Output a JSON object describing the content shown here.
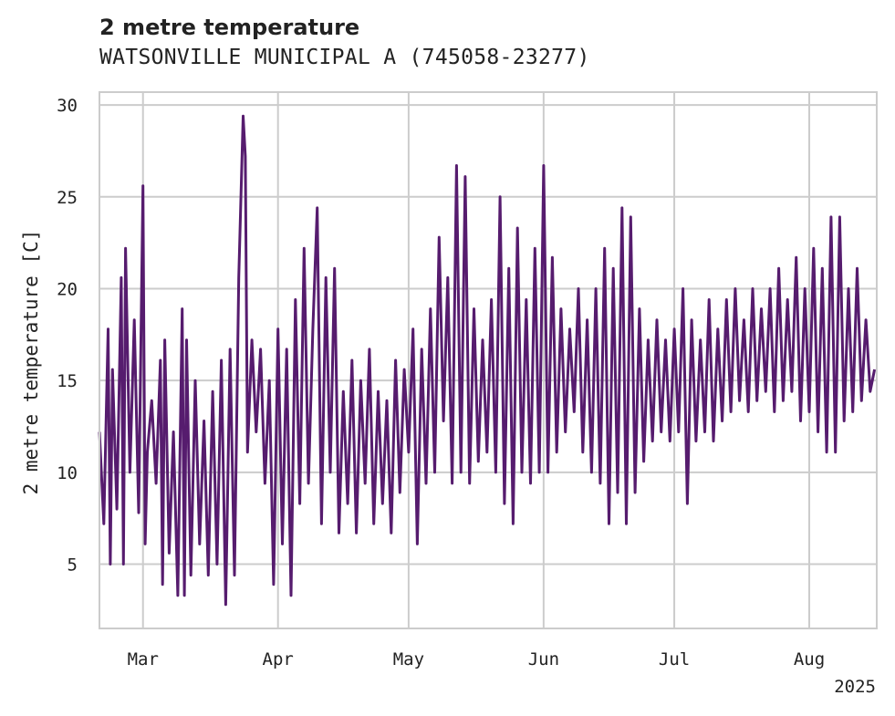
{
  "chart_data": {
    "type": "line",
    "title": "2 metre temperature",
    "subtitle": "WATSONVILLE MUNICIPAL A (745058-23277)",
    "xlabel": "",
    "ylabel": "2 metre temperature [C]",
    "x_range": [
      "2025-02-19",
      "2025-08-16"
    ],
    "ylim": [
      1.5,
      30.7
    ],
    "yticks": [
      5,
      10,
      15,
      20,
      25,
      30
    ],
    "xticks": [
      {
        "date": "2025-03-01",
        "label": "Mar"
      },
      {
        "date": "2025-04-01",
        "label": "Apr"
      },
      {
        "date": "2025-05-01",
        "label": "May"
      },
      {
        "date": "2025-06-01",
        "label": "Jun"
      },
      {
        "date": "2025-07-01",
        "label": "Jul"
      },
      {
        "date": "2025-08-01",
        "label": "Aug"
      }
    ],
    "x_offset_label": "2025",
    "grid": true,
    "color": "#561c6e",
    "series": [
      {
        "name": "",
        "resolution": "hourly (peaks shown)",
        "points": [
          [
            "2025-02-19",
            12.2
          ],
          [
            "2025-02-20",
            7.2
          ],
          [
            "2025-02-21",
            17.8
          ],
          [
            "2025-02-21T12",
            5.0
          ],
          [
            "2025-02-22",
            15.6
          ],
          [
            "2025-02-23",
            8.0
          ],
          [
            "2025-02-24",
            20.6
          ],
          [
            "2025-02-24T12",
            5.0
          ],
          [
            "2025-02-25",
            22.2
          ],
          [
            "2025-02-26",
            10.0
          ],
          [
            "2025-02-27",
            18.3
          ],
          [
            "2025-02-28",
            7.8
          ],
          [
            "2025-03-01",
            25.6
          ],
          [
            "2025-03-01T12",
            6.1
          ],
          [
            "2025-03-02",
            11.1
          ],
          [
            "2025-03-03",
            13.9
          ],
          [
            "2025-03-04",
            9.4
          ],
          [
            "2025-03-05",
            16.1
          ],
          [
            "2025-03-05T12",
            3.9
          ],
          [
            "2025-03-06",
            17.2
          ],
          [
            "2025-03-07",
            5.6
          ],
          [
            "2025-03-08",
            12.2
          ],
          [
            "2025-03-09",
            3.3
          ],
          [
            "2025-03-10",
            18.9
          ],
          [
            "2025-03-10T12",
            3.3
          ],
          [
            "2025-03-11",
            17.2
          ],
          [
            "2025-03-12",
            4.4
          ],
          [
            "2025-03-13",
            15.0
          ],
          [
            "2025-03-14",
            6.1
          ],
          [
            "2025-03-15",
            12.8
          ],
          [
            "2025-03-16",
            4.4
          ],
          [
            "2025-03-17",
            14.4
          ],
          [
            "2025-03-18",
            5.0
          ],
          [
            "2025-03-19",
            16.1
          ],
          [
            "2025-03-20",
            2.8
          ],
          [
            "2025-03-21",
            16.7
          ],
          [
            "2025-03-22",
            4.4
          ],
          [
            "2025-03-23",
            20.6
          ],
          [
            "2025-03-24",
            29.4
          ],
          [
            "2025-03-24T12",
            27.2
          ],
          [
            "2025-03-25",
            11.1
          ],
          [
            "2025-03-26",
            17.2
          ],
          [
            "2025-03-27",
            12.2
          ],
          [
            "2025-03-28",
            16.7
          ],
          [
            "2025-03-29",
            9.4
          ],
          [
            "2025-03-30",
            15.0
          ],
          [
            "2025-03-31",
            3.9
          ],
          [
            "2025-04-01",
            17.8
          ],
          [
            "2025-04-02",
            6.1
          ],
          [
            "2025-04-03",
            16.7
          ],
          [
            "2025-04-04",
            3.3
          ],
          [
            "2025-04-05",
            19.4
          ],
          [
            "2025-04-06",
            8.3
          ],
          [
            "2025-04-07",
            22.2
          ],
          [
            "2025-04-08",
            9.4
          ],
          [
            "2025-04-09",
            17.8
          ],
          [
            "2025-04-10",
            24.4
          ],
          [
            "2025-04-11",
            7.2
          ],
          [
            "2025-04-12",
            20.6
          ],
          [
            "2025-04-13",
            10.0
          ],
          [
            "2025-04-14",
            21.1
          ],
          [
            "2025-04-15",
            6.7
          ],
          [
            "2025-04-16",
            14.4
          ],
          [
            "2025-04-17",
            8.3
          ],
          [
            "2025-04-18",
            16.1
          ],
          [
            "2025-04-19",
            6.7
          ],
          [
            "2025-04-20",
            15.0
          ],
          [
            "2025-04-21",
            9.4
          ],
          [
            "2025-04-22",
            16.7
          ],
          [
            "2025-04-23",
            7.2
          ],
          [
            "2025-04-24",
            14.4
          ],
          [
            "2025-04-25",
            8.3
          ],
          [
            "2025-04-26",
            13.9
          ],
          [
            "2025-04-27",
            6.7
          ],
          [
            "2025-04-28",
            16.1
          ],
          [
            "2025-04-29",
            8.9
          ],
          [
            "2025-04-30",
            15.6
          ],
          [
            "2025-05-01",
            11.1
          ],
          [
            "2025-05-02",
            17.8
          ],
          [
            "2025-05-03",
            6.1
          ],
          [
            "2025-05-04",
            16.7
          ],
          [
            "2025-05-05",
            9.4
          ],
          [
            "2025-05-06",
            18.9
          ],
          [
            "2025-05-07",
            10.0
          ],
          [
            "2025-05-08",
            22.8
          ],
          [
            "2025-05-09",
            12.8
          ],
          [
            "2025-05-10",
            20.6
          ],
          [
            "2025-05-11",
            9.4
          ],
          [
            "2025-05-12",
            26.7
          ],
          [
            "2025-05-13",
            10.0
          ],
          [
            "2025-05-14",
            26.1
          ],
          [
            "2025-05-15",
            9.4
          ],
          [
            "2025-05-16",
            18.9
          ],
          [
            "2025-05-17",
            10.6
          ],
          [
            "2025-05-18",
            17.2
          ],
          [
            "2025-05-19",
            11.1
          ],
          [
            "2025-05-20",
            19.4
          ],
          [
            "2025-05-21",
            10.0
          ],
          [
            "2025-05-22",
            25.0
          ],
          [
            "2025-05-23",
            8.3
          ],
          [
            "2025-05-24",
            21.1
          ],
          [
            "2025-05-25",
            7.2
          ],
          [
            "2025-05-26",
            23.3
          ],
          [
            "2025-05-27",
            10.0
          ],
          [
            "2025-05-28",
            19.4
          ],
          [
            "2025-05-29",
            9.4
          ],
          [
            "2025-05-30",
            22.2
          ],
          [
            "2025-05-31",
            10.0
          ],
          [
            "2025-06-01",
            26.7
          ],
          [
            "2025-06-02",
            10.0
          ],
          [
            "2025-06-03",
            21.7
          ],
          [
            "2025-06-04",
            11.1
          ],
          [
            "2025-06-05",
            18.9
          ],
          [
            "2025-06-06",
            12.2
          ],
          [
            "2025-06-07",
            17.8
          ],
          [
            "2025-06-08",
            13.3
          ],
          [
            "2025-06-09",
            20.0
          ],
          [
            "2025-06-10",
            11.1
          ],
          [
            "2025-06-11",
            18.3
          ],
          [
            "2025-06-12",
            10.0
          ],
          [
            "2025-06-13",
            20.0
          ],
          [
            "2025-06-14",
            9.4
          ],
          [
            "2025-06-15",
            22.2
          ],
          [
            "2025-06-16",
            7.2
          ],
          [
            "2025-06-17",
            21.1
          ],
          [
            "2025-06-18",
            8.9
          ],
          [
            "2025-06-19",
            24.4
          ],
          [
            "2025-06-20",
            7.2
          ],
          [
            "2025-06-21",
            23.9
          ],
          [
            "2025-06-22",
            8.9
          ],
          [
            "2025-06-23",
            18.9
          ],
          [
            "2025-06-24",
            10.6
          ],
          [
            "2025-06-25",
            17.2
          ],
          [
            "2025-06-26",
            11.7
          ],
          [
            "2025-06-27",
            18.3
          ],
          [
            "2025-06-28",
            12.2
          ],
          [
            "2025-06-29",
            17.2
          ],
          [
            "2025-06-30",
            11.7
          ],
          [
            "2025-07-01",
            17.8
          ],
          [
            "2025-07-02",
            12.2
          ],
          [
            "2025-07-03",
            20.0
          ],
          [
            "2025-07-04",
            8.3
          ],
          [
            "2025-07-05",
            18.3
          ],
          [
            "2025-07-06",
            11.7
          ],
          [
            "2025-07-07",
            17.2
          ],
          [
            "2025-07-08",
            12.2
          ],
          [
            "2025-07-09",
            19.4
          ],
          [
            "2025-07-10",
            11.7
          ],
          [
            "2025-07-11",
            17.8
          ],
          [
            "2025-07-12",
            12.8
          ],
          [
            "2025-07-13",
            19.4
          ],
          [
            "2025-07-14",
            13.3
          ],
          [
            "2025-07-15",
            20.0
          ],
          [
            "2025-07-16",
            13.9
          ],
          [
            "2025-07-17",
            18.3
          ],
          [
            "2025-07-18",
            13.3
          ],
          [
            "2025-07-19",
            20.0
          ],
          [
            "2025-07-20",
            13.9
          ],
          [
            "2025-07-21",
            18.9
          ],
          [
            "2025-07-22",
            14.4
          ],
          [
            "2025-07-23",
            20.0
          ],
          [
            "2025-07-24",
            13.3
          ],
          [
            "2025-07-25",
            21.1
          ],
          [
            "2025-07-26",
            13.9
          ],
          [
            "2025-07-27",
            19.4
          ],
          [
            "2025-07-28",
            14.4
          ],
          [
            "2025-07-29",
            21.7
          ],
          [
            "2025-07-30",
            12.8
          ],
          [
            "2025-07-31",
            20.0
          ],
          [
            "2025-08-01",
            13.3
          ],
          [
            "2025-08-02",
            22.2
          ],
          [
            "2025-08-03",
            12.2
          ],
          [
            "2025-08-04",
            21.1
          ],
          [
            "2025-08-05",
            11.1
          ],
          [
            "2025-08-06",
            23.9
          ],
          [
            "2025-08-07",
            11.1
          ],
          [
            "2025-08-08",
            23.9
          ],
          [
            "2025-08-09",
            12.8
          ],
          [
            "2025-08-10",
            20.0
          ],
          [
            "2025-08-11",
            13.3
          ],
          [
            "2025-08-12",
            21.1
          ],
          [
            "2025-08-13",
            13.9
          ],
          [
            "2025-08-14",
            18.3
          ],
          [
            "2025-08-15",
            14.4
          ],
          [
            "2025-08-16",
            15.6
          ]
        ]
      }
    ]
  }
}
